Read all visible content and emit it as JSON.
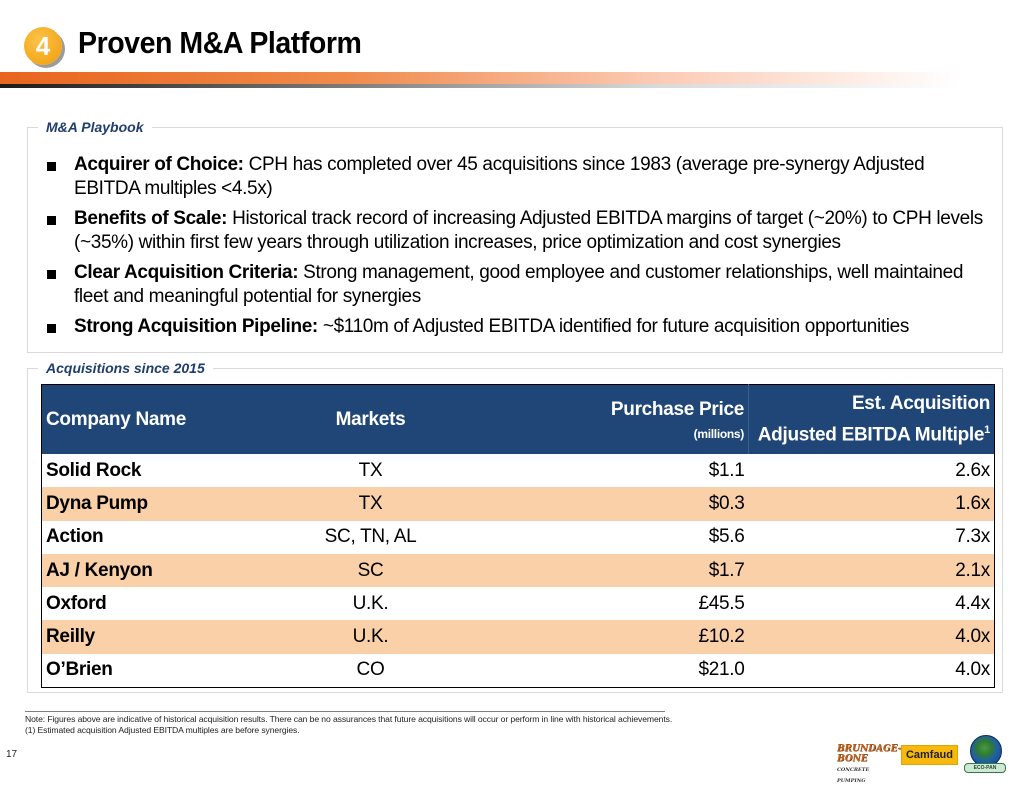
{
  "header": {
    "section_number": "4",
    "title": "Proven M&A Platform"
  },
  "playbook": {
    "label": "M&A Playbook",
    "bullets": [
      {
        "heading": "Acquirer of Choice:",
        "text": " CPH has completed over 45 acquisitions since 1983 (average pre-synergy Adjusted EBITDA multiples <4.5x)"
      },
      {
        "heading": "Benefits of Scale:",
        "text": " Historical track record of increasing Adjusted EBITDA margins of target (~20%) to CPH levels (~35%) within first few years through utilization increases, price optimization and cost synergies"
      },
      {
        "heading": "Clear Acquisition Criteria:",
        "text": " Strong management, good employee and customer relationships, well maintained fleet and meaningful potential for synergies"
      },
      {
        "heading": "Strong Acquisition Pipeline:",
        "text": " ~$110m of Adjusted EBITDA identified for future acquisition opportunities"
      }
    ]
  },
  "acquisitions": {
    "label": "Acquisitions since 2015",
    "columns": {
      "company": "Company Name",
      "markets": "Markets",
      "price": "Purchase Price",
      "price_unit": "(millions)",
      "multiple_line1": "Est. Acquisition",
      "multiple_line2": "Adjusted EBITDA Multiple",
      "multiple_footnote": "1"
    },
    "rows": [
      {
        "company": "Solid Rock",
        "markets": "TX",
        "price": "$1.1",
        "multiple": "2.6x"
      },
      {
        "company": "Dyna Pump",
        "markets": "TX",
        "price": "$0.3",
        "multiple": "1.6x"
      },
      {
        "company": "Action",
        "markets": "SC, TN, AL",
        "price": "$5.6",
        "multiple": "7.3x"
      },
      {
        "company": "AJ / Kenyon",
        "markets": "SC",
        "price": "$1.7",
        "multiple": "2.1x"
      },
      {
        "company": "Oxford",
        "markets": "U.K.",
        "price": "£45.5",
        "multiple": "4.4x"
      },
      {
        "company": "Reilly",
        "markets": "U.K.",
        "price": "£10.2",
        "multiple": "4.0x"
      },
      {
        "company": "O’Brien",
        "markets": "CO",
        "price": "$21.0",
        "multiple": "4.0x"
      }
    ]
  },
  "footer": {
    "note": "Note: Figures above are indicative of historical acquisition results. There can be no assurances that future acquisitions will occur or perform in line with historical achievements.",
    "footnote_1": "(1) Estimated acquisition Adjusted EBITDA multiples are before synergies.",
    "page_number": "17",
    "logos": {
      "brundage_line1": "BRUNDAGE-",
      "brundage_line2": "BONE",
      "brundage_sub": "CONCRETE PUMPING",
      "camfaud": "Camfaud",
      "ecopan": "ECO-PAN"
    }
  },
  "colors": {
    "header_blue": "#1f4677",
    "row_highlight": "#f9d0a8",
    "label_blue": "#1f3e6e",
    "badge_orange": "#f4a81c",
    "rule_orange": "#e8651d"
  }
}
